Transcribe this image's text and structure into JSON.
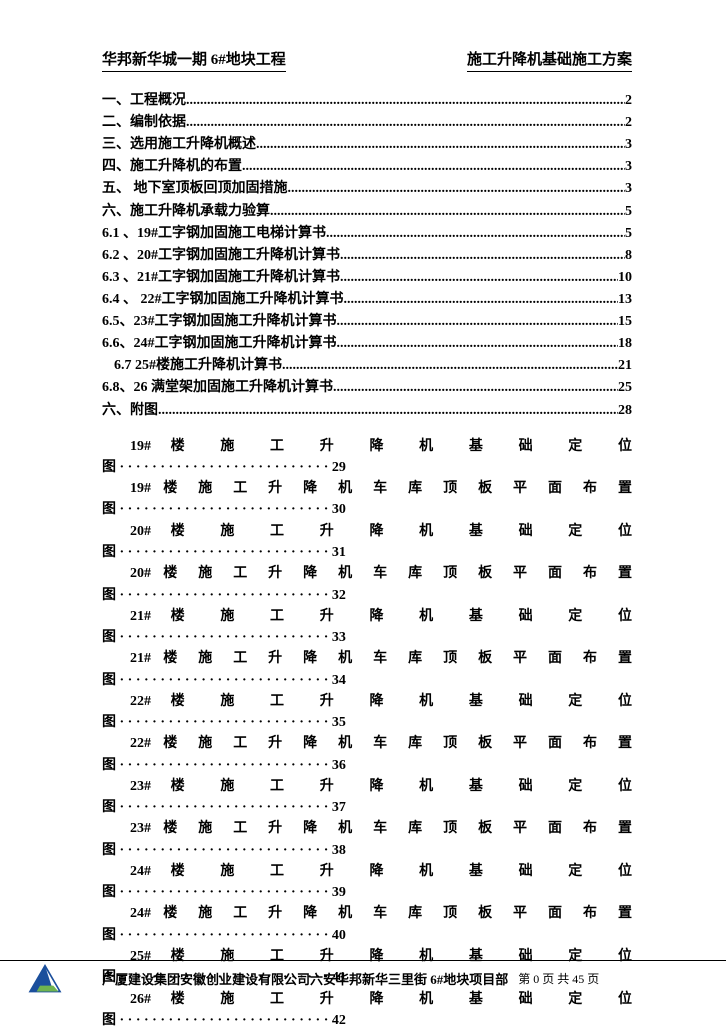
{
  "header": {
    "left": "华邦新华城一期 6#地块工程",
    "right": "施工升降机基础施工方案"
  },
  "toc": [
    {
      "label": "一、工程概况",
      "page": "2",
      "indent": 0
    },
    {
      "label": "二、编制依据",
      "page": "2",
      "indent": 0
    },
    {
      "label": "三、选用施工升降机概述",
      "page": "3",
      "indent": 0
    },
    {
      "label": "四、施工升降机的布置",
      "page": "3",
      "indent": 0
    },
    {
      "label": "五、 地下室顶板回顶加固措施",
      "page": "3",
      "indent": 0
    },
    {
      "label": "六、施工升降机承载力验算",
      "page": "5",
      "indent": 0
    },
    {
      "label": "6.1 、19#工字钢加固施工电梯计算书",
      "page": "5",
      "indent": 0
    },
    {
      "label": "6.2 、20#工字钢加固施工升降机计算书",
      "page": "8",
      "indent": 0
    },
    {
      "label": "6.3 、21#工字钢加固施工升降机计算书",
      "page": "10",
      "indent": 0
    },
    {
      "label": "6.4 、 22#工字钢加固施工升降机计算书",
      "page": "13",
      "indent": 0
    },
    {
      "label": "6.5、23#工字钢加固施工升降机计算书",
      "page": "15",
      "indent": 0
    },
    {
      "label": "6.6、24#工字钢加固施工升降机计算书",
      "page": "18",
      "indent": 0
    },
    {
      "label": "6.7   25#楼施工升降机计算书",
      "page": "21",
      "indent": 1
    },
    {
      "label": "6.8、26 满堂架加固施工升降机计算书",
      "page": "25",
      "indent": 0
    },
    {
      "label": "六、附图",
      "page": "28",
      "indent": 0
    }
  ],
  "figs": [
    {
      "text": "19# 楼 施 工 升 降 机 基 础 定 位 图",
      "page": "29"
    },
    {
      "text": "19# 楼 施 工 升 降 机 车 库 顶 板 平 面 布 置 图",
      "page": "30"
    },
    {
      "text": "20# 楼 施 工 升 降 机 基 础 定 位 图",
      "page": "31"
    },
    {
      "text": "20# 楼 施 工 升 降 机 车 库 顶 板 平 面 布 置 图",
      "page": "32"
    },
    {
      "text": "21# 楼 施 工 升 降 机 基 础 定 位 图",
      "page": "33"
    },
    {
      "text": "21# 楼 施 工 升 降 机 车 库 顶 板 平 面 布 置 图",
      "page": "34"
    },
    {
      "text": "22# 楼 施 工 升 降 机 基 础 定 位 图",
      "page": "35"
    },
    {
      "text": "22# 楼 施 工 升 降 机 车 库 顶 板 平 面 布 置 图",
      "page": "36"
    },
    {
      "text": "23# 楼 施 工 升 降 机 基 础 定 位 图",
      "page": "37"
    },
    {
      "text": "23# 楼 施 工 升 降 机 车 库 顶 板 平 面 布 置 图",
      "page": "38"
    },
    {
      "text": "24# 楼 施 工 升 降 机 基 础 定 位 图",
      "page": "39"
    },
    {
      "text": "24# 楼 施 工 升 降 机 车 库 顶 板 平 面 布 置 图",
      "page": "40"
    },
    {
      "text": "25# 楼 施 工 升 降 机 基 础 定 位 图",
      "page": "41"
    },
    {
      "text": "26# 楼 施 工 升 降 机 基 础 定 位 图",
      "page": "42"
    }
  ],
  "footer": {
    "company": "广厦建设集团安徽创业建设有限公司六安华邦新华三里街  6#地块项目部",
    "pager": "第  0 页 共  45 页"
  },
  "dot_leader_char": "·",
  "half_width": 265
}
